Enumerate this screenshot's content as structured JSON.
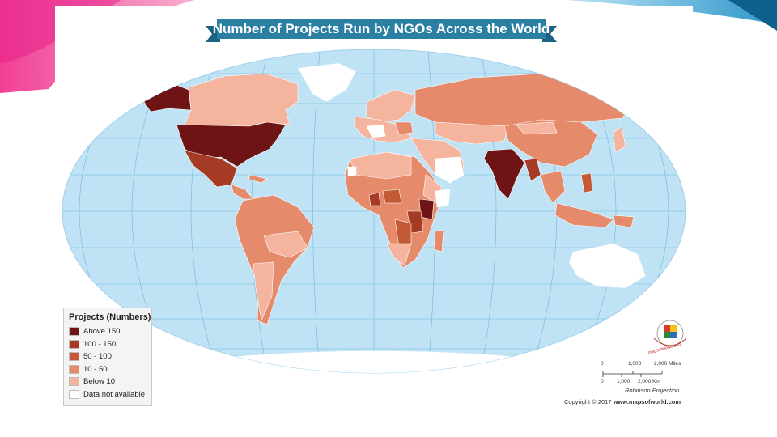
{
  "title": "Number of Projects Run by NGOs Across the World",
  "legend": {
    "title": "Projects (Numbers)",
    "items": [
      {
        "label": "Above 150",
        "color": "#6e1414"
      },
      {
        "label": "100 - 150",
        "color": "#a53a25"
      },
      {
        "label": "50 - 100",
        "color": "#c45a35"
      },
      {
        "label": "10 - 50",
        "color": "#e58a6a"
      },
      {
        "label": "Below 10",
        "color": "#f5b49e"
      },
      {
        "label": "Data not available",
        "color": "#ffffff"
      }
    ]
  },
  "scale": {
    "miles_labels": [
      "0",
      "1,000",
      "2,000 Miles"
    ],
    "km_labels": [
      "0",
      "1,000",
      "2,000 Km"
    ]
  },
  "projection": "Robinson Projection",
  "copyright": "Copyright © 2017",
  "copyright_site": "www.mapsofworld.com",
  "logo_text": "mapsofworld.com",
  "colors": {
    "ocean": "#bfe3f5",
    "graticule": "#6fb7dd",
    "banner": "#2a7fa3",
    "banner_ribbon": "#1c6282"
  }
}
